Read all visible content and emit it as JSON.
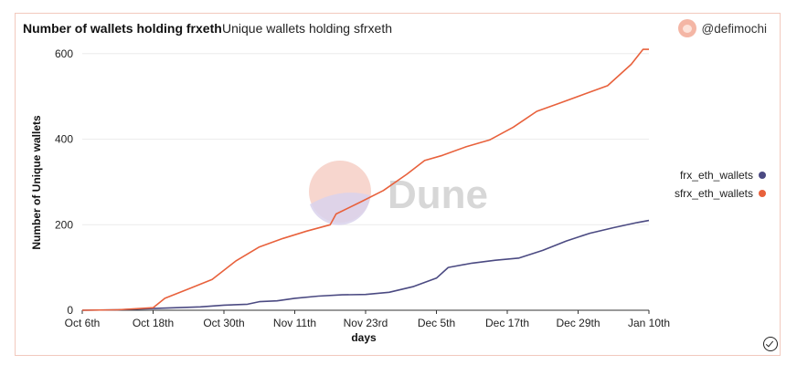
{
  "header": {
    "title": "Number of wallets holding frxeth",
    "subtitle": "Unique wallets holding sfrxeth",
    "author": "@defimochi"
  },
  "watermark": "Dune",
  "colors": {
    "frx": "#4b4a82",
    "sfrx": "#e8613c",
    "grid": "#ececec",
    "axis": "#333333"
  },
  "chart_data": {
    "type": "line",
    "title": "Number of wallets holding frxeth",
    "xlabel": "days",
    "ylabel": "Number of Unique wallets",
    "x_ticks": [
      "Oct 6th",
      "Oct 18th",
      "Oct 30th",
      "Nov 11th",
      "Nov 23rd",
      "Dec 5th",
      "Dec 17th",
      "Dec 29th",
      "Jan 10th"
    ],
    "y_ticks": [
      0,
      200,
      400,
      600
    ],
    "ylim": [
      0,
      640
    ],
    "xlim": [
      "2022-10-06",
      "2023-01-10"
    ],
    "legend_position": "right",
    "grid": true,
    "series": [
      {
        "name": "frx_eth_wallets",
        "color": "#4b4a82",
        "points": [
          [
            "2022-10-06",
            0
          ],
          [
            "2022-10-12",
            1
          ],
          [
            "2022-10-18",
            4
          ],
          [
            "2022-10-22",
            6
          ],
          [
            "2022-10-26",
            8
          ],
          [
            "2022-10-30",
            12
          ],
          [
            "2022-11-03",
            14
          ],
          [
            "2022-11-05",
            20
          ],
          [
            "2022-11-08",
            22
          ],
          [
            "2022-11-11",
            28
          ],
          [
            "2022-11-15",
            33
          ],
          [
            "2022-11-19",
            36
          ],
          [
            "2022-11-23",
            37
          ],
          [
            "2022-11-27",
            42
          ],
          [
            "2022-12-01",
            55
          ],
          [
            "2022-12-03",
            65
          ],
          [
            "2022-12-05",
            75
          ],
          [
            "2022-12-07",
            100
          ],
          [
            "2022-12-11",
            110
          ],
          [
            "2022-12-15",
            117
          ],
          [
            "2022-12-19",
            122
          ],
          [
            "2022-12-23",
            140
          ],
          [
            "2022-12-27",
            162
          ],
          [
            "2022-12-31",
            180
          ],
          [
            "2023-01-04",
            193
          ],
          [
            "2023-01-08",
            205
          ],
          [
            "2023-01-10",
            210
          ]
        ]
      },
      {
        "name": "sfrx_eth_wallets",
        "color": "#e8613c",
        "points": [
          [
            "2022-10-06",
            0
          ],
          [
            "2022-10-12",
            1
          ],
          [
            "2022-10-18",
            6
          ],
          [
            "2022-10-20",
            28
          ],
          [
            "2022-10-24",
            50
          ],
          [
            "2022-10-28",
            72
          ],
          [
            "2022-11-01",
            115
          ],
          [
            "2022-11-05",
            148
          ],
          [
            "2022-11-09",
            168
          ],
          [
            "2022-11-13",
            185
          ],
          [
            "2022-11-17",
            200
          ],
          [
            "2022-11-18",
            225
          ],
          [
            "2022-11-22",
            252
          ],
          [
            "2022-11-26",
            280
          ],
          [
            "2022-11-30",
            318
          ],
          [
            "2022-12-03",
            350
          ],
          [
            "2022-12-06",
            362
          ],
          [
            "2022-12-10",
            382
          ],
          [
            "2022-12-14",
            398
          ],
          [
            "2022-12-18",
            428
          ],
          [
            "2022-12-22",
            465
          ],
          [
            "2022-12-26",
            485
          ],
          [
            "2022-12-30",
            505
          ],
          [
            "2023-01-03",
            525
          ],
          [
            "2023-01-07",
            575
          ],
          [
            "2023-01-09",
            610
          ],
          [
            "2023-01-10",
            610
          ]
        ]
      }
    ]
  }
}
